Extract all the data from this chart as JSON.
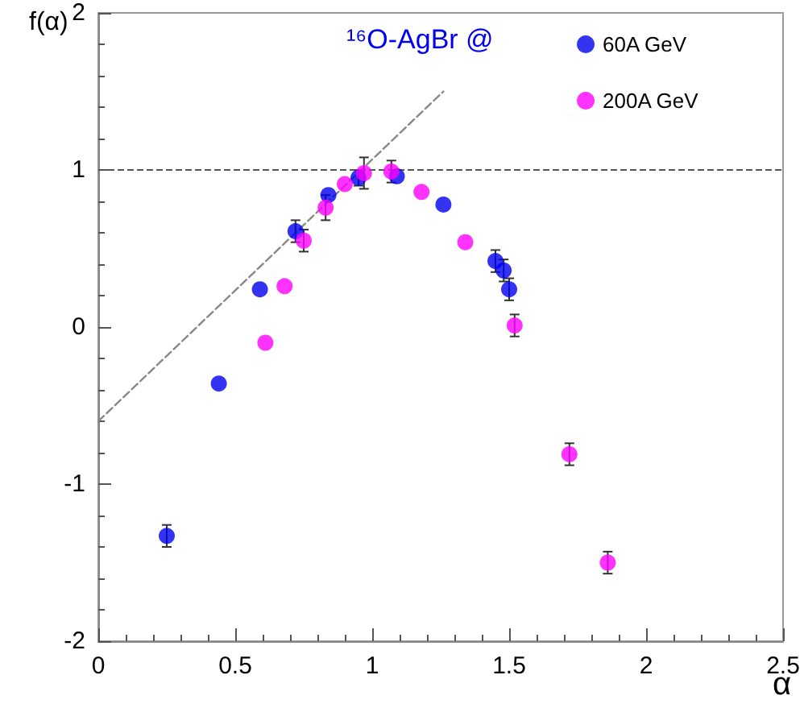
{
  "chart_data": {
    "type": "scatter",
    "xlabel": "α",
    "ylabel": "f(α)",
    "annotations": [
      "¹⁶O-AgBr @"
    ],
    "xlim": [
      0,
      2.5
    ],
    "xticks": [
      0,
      0.5,
      1,
      1.5,
      2,
      2.5
    ],
    "ylim": [
      -2,
      2
    ],
    "yticks": [
      -2,
      -1,
      0,
      1,
      2
    ],
    "grid": false,
    "legend": "top right",
    "marker": "circle",
    "series": [
      {
        "name": "60A GeV",
        "color": "#0000ee",
        "x": [
          0.25,
          0.44,
          0.59,
          0.72,
          0.84,
          0.95,
          1.09,
          1.26,
          1.45,
          1.48,
          1.5
        ],
        "values": [
          -1.33,
          -0.36,
          0.24,
          0.61,
          0.84,
          0.95,
          0.96,
          0.78,
          0.42,
          0.36,
          0.24
        ],
        "errors": [
          0.07,
          null,
          null,
          0.07,
          null,
          0.05,
          null,
          null,
          0.07,
          0.07,
          0.07
        ]
      },
      {
        "name": "200A GeV",
        "color": "#ff00ff",
        "x": [
          0.61,
          0.68,
          0.75,
          0.83,
          0.9,
          0.97,
          1.07,
          1.18,
          1.34,
          1.52,
          1.72,
          1.86
        ],
        "values": [
          -0.1,
          0.26,
          0.55,
          0.76,
          0.91,
          0.98,
          0.99,
          0.86,
          0.54,
          0.01,
          -0.81,
          -1.5
        ],
        "errors": [
          null,
          null,
          0.07,
          0.08,
          null,
          0.1,
          0.07,
          null,
          null,
          0.07,
          0.07,
          0.07
        ]
      },
      {
        "type": "line",
        "color": "#888888",
        "line_style": "dashed",
        "marker": "none",
        "x": [
          0,
          1.26
        ],
        "values": [
          -0.6,
          1.5
        ]
      }
    ],
    "ref_lines": [
      {
        "axis": "y",
        "value": 1,
        "color": "#555555",
        "line_style": "dashed"
      }
    ]
  }
}
